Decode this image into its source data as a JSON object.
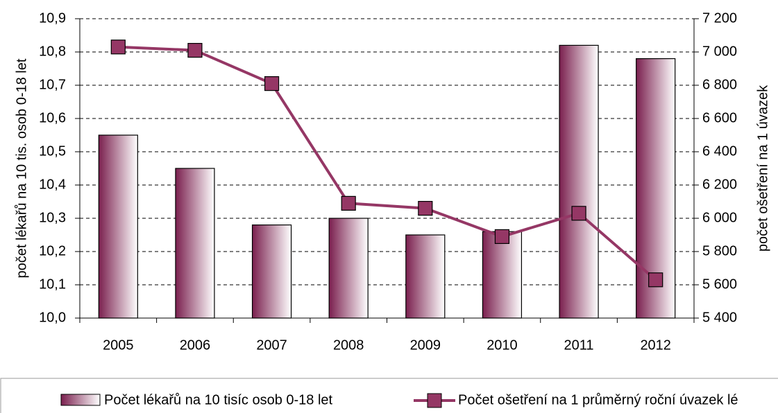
{
  "chart_data": {
    "type": "bar-line",
    "categories": [
      "2005",
      "2006",
      "2007",
      "2008",
      "2009",
      "2010",
      "2011",
      "2012"
    ],
    "ylabel": "počet lékařů na 10 tis. osob 0-18 let",
    "y2label": "počet ošetření na 1 úvazek",
    "series": [
      {
        "name": "Počet lékařů na 10 tisíc osob 0-18 let",
        "type": "bar",
        "color": "#7a1f4e",
        "values": [
          10.55,
          10.45,
          10.28,
          10.3,
          10.25,
          10.26,
          10.82,
          10.78
        ]
      },
      {
        "name": "Počet ošetření na 1 průměrný roční úvazek lé",
        "type": "line",
        "axis": "y2",
        "color": "#953765",
        "values": [
          7030,
          7010,
          6810,
          6090,
          6060,
          5890,
          6030,
          5630
        ]
      }
    ],
    "ylim": [
      10.0,
      10.9
    ],
    "yticks": [
      {
        "value": 10.0,
        "label": "10,0"
      },
      {
        "value": 10.1,
        "label": "10,1"
      },
      {
        "value": 10.2,
        "label": "10,2"
      },
      {
        "value": 10.3,
        "label": "10,3"
      },
      {
        "value": 10.4,
        "label": "10,4"
      },
      {
        "value": 10.5,
        "label": "10,5"
      },
      {
        "value": 10.6,
        "label": "10,6"
      },
      {
        "value": 10.7,
        "label": "10,7"
      },
      {
        "value": 10.8,
        "label": "10,8"
      },
      {
        "value": 10.9,
        "label": "10,9"
      }
    ],
    "y2lim": [
      5400,
      7200
    ],
    "y2ticks": [
      {
        "value": 5400,
        "label": "5 400"
      },
      {
        "value": 5600,
        "label": "5 600"
      },
      {
        "value": 5800,
        "label": "5 800"
      },
      {
        "value": 6000,
        "label": "6 000"
      },
      {
        "value": 6200,
        "label": "6 200"
      },
      {
        "value": 6400,
        "label": "6 400"
      },
      {
        "value": 6600,
        "label": "6 600"
      },
      {
        "value": 6800,
        "label": "6 800"
      },
      {
        "value": 7000,
        "label": "7 000"
      },
      {
        "value": 7200,
        "label": "7 200"
      }
    ],
    "grid": true
  }
}
